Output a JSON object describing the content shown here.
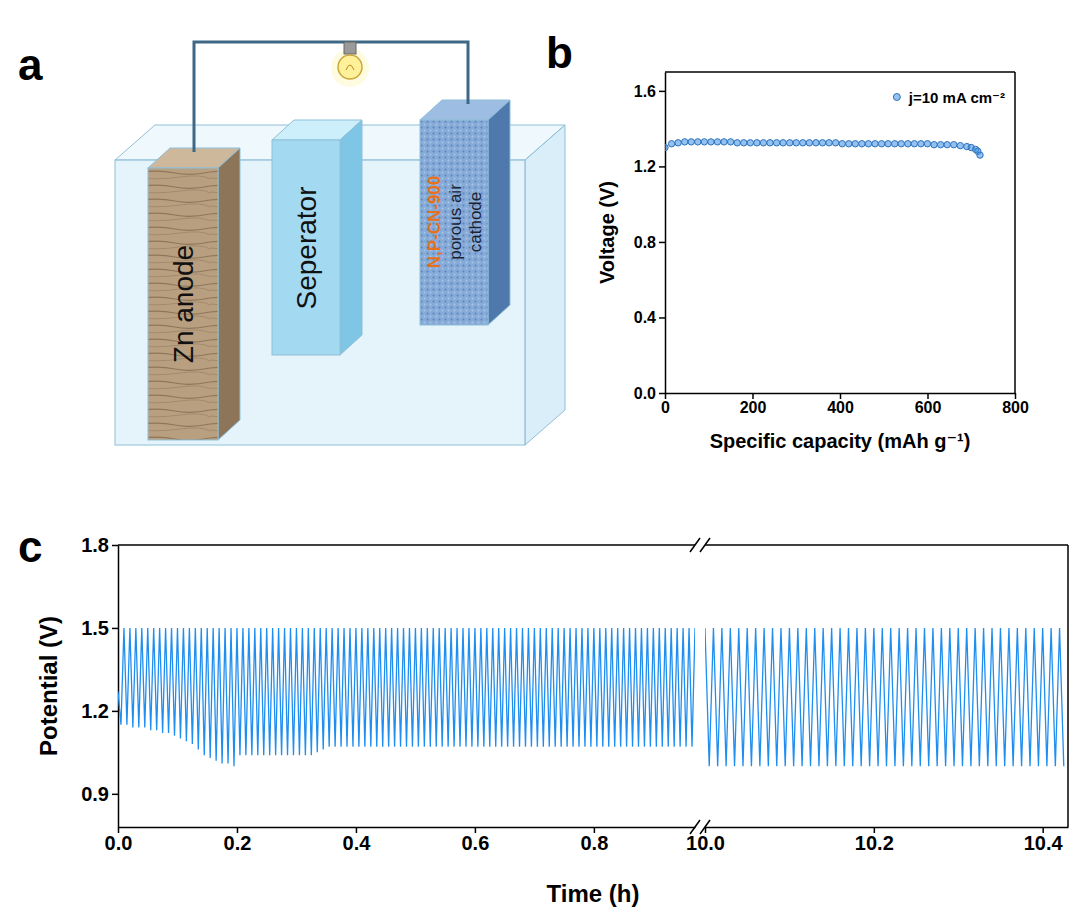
{
  "panel_labels": [
    "a",
    "b",
    "c"
  ],
  "diagram": {
    "anode": "Zn anode",
    "separator": "Seperator",
    "cathode_material": "N,P-CN-900",
    "cathode_text": [
      "porous air",
      "cathode"
    ]
  },
  "chart_data": [
    {
      "type": "scatter",
      "x_label": "Specific capacity (mAh g⁻¹)",
      "y_label": "Voltage (V)",
      "xlim": [
        0,
        800
      ],
      "xticks": [
        0,
        200,
        400,
        600,
        800
      ],
      "ylim": [
        0,
        1.7
      ],
      "yticks": [
        {
          "value": 0,
          "label": "0.0"
        },
        0.4,
        0.8,
        1.2,
        1.6
      ],
      "legend": "upper right",
      "series": [
        {
          "name": "j=10 mA cm⁻²",
          "color": "#3a8ee6",
          "marker": "circle",
          "x": [
            0,
            15,
            30,
            45,
            60,
            75,
            90,
            105,
            120,
            135,
            150,
            165,
            180,
            195,
            210,
            225,
            240,
            255,
            270,
            285,
            300,
            315,
            330,
            345,
            360,
            375,
            390,
            405,
            420,
            435,
            450,
            465,
            480,
            495,
            510,
            525,
            540,
            555,
            570,
            585,
            600,
            615,
            630,
            645,
            660,
            675,
            690,
            700,
            710,
            715,
            720
          ],
          "values": [
            1.3,
            1.32,
            1.325,
            1.33,
            1.33,
            1.33,
            1.33,
            1.33,
            1.33,
            1.33,
            1.33,
            1.325,
            1.325,
            1.325,
            1.325,
            1.325,
            1.325,
            1.325,
            1.325,
            1.325,
            1.325,
            1.325,
            1.325,
            1.325,
            1.325,
            1.325,
            1.325,
            1.32,
            1.32,
            1.32,
            1.32,
            1.32,
            1.32,
            1.32,
            1.32,
            1.32,
            1.32,
            1.32,
            1.32,
            1.32,
            1.32,
            1.315,
            1.315,
            1.315,
            1.315,
            1.31,
            1.305,
            1.3,
            1.29,
            1.28,
            1.26
          ]
        }
      ]
    },
    {
      "type": "line",
      "x_label": "Time (h)",
      "y_label": "Potential (V)",
      "ylim": [
        0.78,
        1.8
      ],
      "yticks": [
        0.9,
        1.2,
        1.5,
        1.8
      ],
      "color": "#1f8ef1",
      "panels": [
        {
          "xlim": [
            0,
            0.97
          ],
          "xticks": [
            {
              "value": 0,
              "label": "0.0"
            },
            0.2,
            0.4,
            0.6,
            0.8
          ],
          "x": [
            0,
            0.005,
            0.01,
            0.015,
            0.02,
            0.025,
            0.03,
            0.035,
            0.04,
            0.045,
            0.05,
            0.055,
            0.06,
            0.065,
            0.07,
            0.075,
            0.08,
            0.085,
            0.09,
            0.095,
            0.1,
            0.105,
            0.11,
            0.115,
            0.12,
            0.125,
            0.13,
            0.135,
            0.14,
            0.145,
            0.15,
            0.155,
            0.16,
            0.165,
            0.17,
            0.175,
            0.18,
            0.185,
            0.19,
            0.195,
            0.2,
            0.205,
            0.21,
            0.215,
            0.22,
            0.225,
            0.23,
            0.235,
            0.24,
            0.245,
            0.25,
            0.255,
            0.26,
            0.265,
            0.27,
            0.275,
            0.28,
            0.285,
            0.29,
            0.295,
            0.3,
            0.305,
            0.31,
            0.315,
            0.32,
            0.325,
            0.33,
            0.335,
            0.34,
            0.345,
            0.35,
            0.355,
            0.36,
            0.365,
            0.37,
            0.375,
            0.38,
            0.385,
            0.39,
            0.395,
            0.4,
            0.405,
            0.41,
            0.415,
            0.42,
            0.425,
            0.43,
            0.435,
            0.44,
            0.445,
            0.45,
            0.455,
            0.46,
            0.465,
            0.47,
            0.475,
            0.48,
            0.485,
            0.49,
            0.495,
            0.5,
            0.505,
            0.51,
            0.515,
            0.52,
            0.525,
            0.53,
            0.535,
            0.54,
            0.545,
            0.55,
            0.555,
            0.56,
            0.565,
            0.57,
            0.575,
            0.58,
            0.585,
            0.59,
            0.595,
            0.6,
            0.605,
            0.61,
            0.615,
            0.62,
            0.625,
            0.63,
            0.635,
            0.64,
            0.645,
            0.65,
            0.655,
            0.66,
            0.665,
            0.67,
            0.675,
            0.68,
            0.685,
            0.69,
            0.695,
            0.7,
            0.705,
            0.71,
            0.715,
            0.72,
            0.725,
            0.73,
            0.735,
            0.74,
            0.745,
            0.75,
            0.755,
            0.76,
            0.765,
            0.77,
            0.775,
            0.78,
            0.785,
            0.79,
            0.795,
            0.8,
            0.805,
            0.81,
            0.815,
            0.82,
            0.825,
            0.83,
            0.835,
            0.84,
            0.845,
            0.85,
            0.855,
            0.86,
            0.865,
            0.87,
            0.875,
            0.88,
            0.885,
            0.89,
            0.895,
            0.9,
            0.905,
            0.91,
            0.915,
            0.92,
            0.925,
            0.93,
            0.935,
            0.94,
            0.945,
            0.95,
            0.955,
            0.96,
            0.965,
            0.97
          ],
          "values": [
            1.27,
            1.15,
            1.5,
            1.15,
            1.5,
            1.14,
            1.5,
            1.14,
            1.5,
            1.14,
            1.5,
            1.13,
            1.5,
            1.13,
            1.5,
            1.12,
            1.5,
            1.12,
            1.5,
            1.11,
            1.5,
            1.1,
            1.5,
            1.09,
            1.5,
            1.08,
            1.5,
            1.06,
            1.5,
            1.04,
            1.5,
            1.03,
            1.5,
            1.02,
            1.5,
            1.01,
            1.5,
            1.01,
            1.5,
            1.0,
            1.5,
            1.04,
            1.5,
            1.04,
            1.5,
            1.04,
            1.5,
            1.04,
            1.5,
            1.04,
            1.5,
            1.04,
            1.5,
            1.04,
            1.5,
            1.04,
            1.5,
            1.04,
            1.5,
            1.04,
            1.5,
            1.04,
            1.5,
            1.04,
            1.5,
            1.04,
            1.5,
            1.05,
            1.5,
            1.06,
            1.5,
            1.07,
            1.5,
            1.07,
            1.5,
            1.07,
            1.5,
            1.07,
            1.5,
            1.07,
            1.5,
            1.07,
            1.5,
            1.07,
            1.5,
            1.07,
            1.5,
            1.07,
            1.5,
            1.07,
            1.5,
            1.07,
            1.5,
            1.07,
            1.5,
            1.07,
            1.5,
            1.07,
            1.5,
            1.07,
            1.5,
            1.07,
            1.5,
            1.07,
            1.5,
            1.07,
            1.5,
            1.07,
            1.5,
            1.07,
            1.5,
            1.07,
            1.5,
            1.07,
            1.5,
            1.07,
            1.5,
            1.07,
            1.5,
            1.07,
            1.5,
            1.07,
            1.5,
            1.07,
            1.5,
            1.07,
            1.5,
            1.07,
            1.5,
            1.07,
            1.5,
            1.07,
            1.5,
            1.07,
            1.5,
            1.07,
            1.5,
            1.07,
            1.5,
            1.07,
            1.5,
            1.07,
            1.5,
            1.07,
            1.5,
            1.07,
            1.5,
            1.07,
            1.5,
            1.07,
            1.5,
            1.07,
            1.5,
            1.07,
            1.5,
            1.07,
            1.5,
            1.07,
            1.5,
            1.07,
            1.5,
            1.07,
            1.5,
            1.07,
            1.5,
            1.07,
            1.5,
            1.07,
            1.5,
            1.07,
            1.5,
            1.07,
            1.5,
            1.07,
            1.5,
            1.07,
            1.5,
            1.07,
            1.5,
            1.07,
            1.5,
            1.07,
            1.5,
            1.07,
            1.5,
            1.07,
            1.5,
            1.07,
            1.5,
            1.07,
            1.5,
            1.07,
            1.5,
            1.07,
            1.5
          ]
        },
        {
          "xlim": [
            10,
            10.43
          ],
          "xticks": [
            {
              "value": 10,
              "label": "10.0"
            },
            10.2,
            10.4
          ],
          "x": [
            10,
            10.005,
            10.01,
            10.015,
            10.02,
            10.025,
            10.03,
            10.035,
            10.04,
            10.045,
            10.05,
            10.055,
            10.06,
            10.065,
            10.07,
            10.075,
            10.08,
            10.085,
            10.09,
            10.095,
            10.1,
            10.105,
            10.11,
            10.115,
            10.12,
            10.125,
            10.13,
            10.135,
            10.14,
            10.145,
            10.15,
            10.155,
            10.16,
            10.165,
            10.17,
            10.175,
            10.18,
            10.185,
            10.19,
            10.195,
            10.2,
            10.205,
            10.21,
            10.215,
            10.22,
            10.225,
            10.23,
            10.235,
            10.24,
            10.245,
            10.25,
            10.255,
            10.26,
            10.265,
            10.27,
            10.275,
            10.28,
            10.285,
            10.29,
            10.295,
            10.3,
            10.305,
            10.31,
            10.315,
            10.32,
            10.325,
            10.33,
            10.335,
            10.34,
            10.345,
            10.35,
            10.355,
            10.36,
            10.365,
            10.37,
            10.375,
            10.38,
            10.385,
            10.39,
            10.395,
            10.4,
            10.405,
            10.41,
            10.415,
            10.42,
            10.425
          ],
          "values": [
            1.5,
            1,
            1.5,
            1,
            1.5,
            1,
            1.5,
            1,
            1.5,
            1,
            1.5,
            1,
            1.5,
            1,
            1.5,
            1,
            1.5,
            1,
            1.5,
            1,
            1.5,
            1,
            1.5,
            1,
            1.5,
            1,
            1.5,
            1,
            1.5,
            1,
            1.5,
            1,
            1.5,
            1,
            1.5,
            1,
            1.5,
            1,
            1.5,
            1,
            1.5,
            1,
            1.5,
            1,
            1.5,
            1,
            1.5,
            1,
            1.5,
            1,
            1.5,
            1,
            1.5,
            1,
            1.5,
            1,
            1.5,
            1,
            1.5,
            1,
            1.5,
            1,
            1.5,
            1,
            1.5,
            1,
            1.5,
            1,
            1.5,
            1,
            1.5,
            1,
            1.5,
            1,
            1.5,
            1,
            1.5,
            1,
            1.5,
            1,
            1.5,
            1,
            1.5,
            1,
            1.5,
            1
          ]
        }
      ]
    }
  ]
}
